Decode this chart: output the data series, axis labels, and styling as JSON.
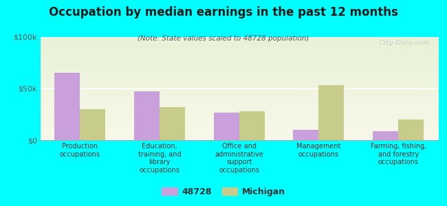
{
  "title": "Occupation by median earnings in the past 12 months",
  "subtitle": "(Note: State values scaled to 48728 population)",
  "categories": [
    "Production\noccupations",
    "Education,\ntraining, and\nlibrary\noccupations",
    "Office and\nadministrative\nsupport\noccupations",
    "Management\noccupations",
    "Farming, fishing,\nand forestry\noccupations"
  ],
  "values_48728": [
    65000,
    47000,
    27000,
    10000,
    9000
  ],
  "values_michigan": [
    30000,
    32000,
    28000,
    53000,
    20000
  ],
  "color_48728": "#c9a0dc",
  "color_michigan": "#c8cc8a",
  "ylim": [
    0,
    100000
  ],
  "yticks": [
    0,
    50000,
    100000
  ],
  "ytick_labels": [
    "$0",
    "$50k",
    "$100k"
  ],
  "background_color": "#00ffff",
  "bar_width": 0.32,
  "legend_label_48728": "48728",
  "legend_label_michigan": "Michigan",
  "watermark": "City-Data.com"
}
